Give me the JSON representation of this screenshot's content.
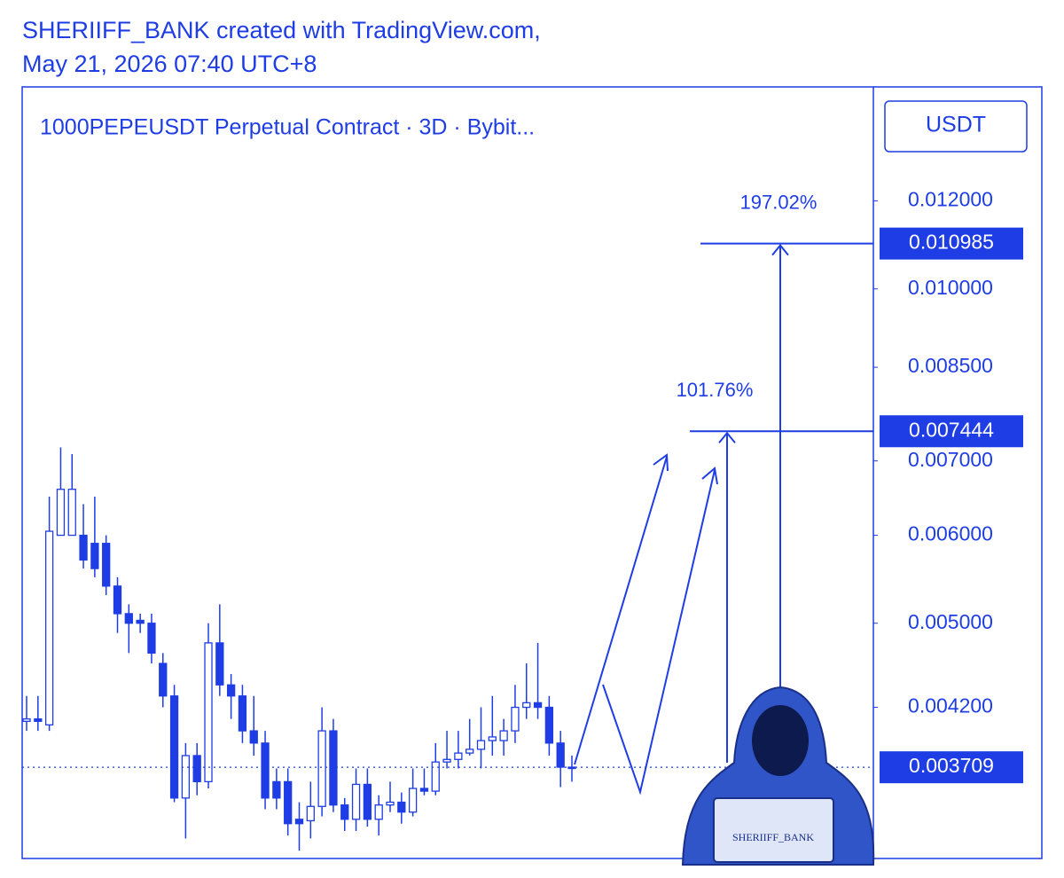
{
  "header": {
    "line1": "SHERIIFF_BANK created with TradingView.com,",
    "line2": "May 21, 2026 07:40 UTC+8"
  },
  "chart_data": {
    "type": "candlestick",
    "title": "1000PEPEUSDT Perpetual Contract · 3D · Bybit...",
    "currency": "USDT",
    "color": "#1e3de4",
    "log_scale": true,
    "ylim": [
      0.00307,
      0.0152
    ],
    "yticks": [
      {
        "value": 0.012,
        "label": "0.012000"
      },
      {
        "value": 0.01,
        "label": "0.010000"
      },
      {
        "value": 0.0085,
        "label": "0.008500"
      },
      {
        "value": 0.007,
        "label": "0.007000"
      },
      {
        "value": 0.006,
        "label": "0.006000"
      },
      {
        "value": 0.005,
        "label": "0.005000"
      },
      {
        "value": 0.0042,
        "label": "0.004200"
      }
    ],
    "open": [
      0.00408,
      0.0041,
      0.00405,
      0.006,
      0.006,
      0.006,
      0.0059,
      0.0059,
      0.0054,
      0.0051,
      0.00503,
      0.005,
      0.0046,
      0.0043,
      0.00348,
      0.0038,
      0.0036,
      0.0048,
      0.0044,
      0.0043,
      0.004,
      0.0039,
      0.0036,
      0.0036,
      0.00333,
      0.00332,
      0.00342,
      0.004,
      0.00343,
      0.00333,
      0.00358,
      0.00333,
      0.00343,
      0.00345,
      0.00338,
      0.00355,
      0.00353,
      0.00375,
      0.00377,
      0.00382,
      0.00385,
      0.00392,
      0.00392,
      0.004,
      0.0042,
      0.00424,
      0.0042,
      0.0039,
      0.00371
    ],
    "high": [
      0.0043,
      0.0043,
      0.0065,
      0.0072,
      0.0071,
      0.0064,
      0.0065,
      0.006,
      0.0055,
      0.0052,
      0.0051,
      0.0051,
      0.0047,
      0.0044,
      0.0039,
      0.0039,
      0.005,
      0.0052,
      0.0045,
      0.0044,
      0.0043,
      0.004,
      0.0037,
      0.0037,
      0.00345,
      0.0036,
      0.0042,
      0.0041,
      0.00348,
      0.0037,
      0.0037,
      0.0035,
      0.0036,
      0.00352,
      0.0037,
      0.0037,
      0.0039,
      0.004,
      0.004,
      0.0041,
      0.0042,
      0.0043,
      0.0041,
      0.0044,
      0.0046,
      0.0048,
      0.0043,
      0.004,
      0.0038
    ],
    "low": [
      0.004,
      0.004,
      0.004,
      0.006,
      0.006,
      0.0056,
      0.0055,
      0.0053,
      0.0049,
      0.0047,
      0.0049,
      0.0046,
      0.0042,
      0.00345,
      0.0032,
      0.0035,
      0.00355,
      0.0043,
      0.0041,
      0.0039,
      0.0038,
      0.0034,
      0.0034,
      0.00322,
      0.00312,
      0.0032,
      0.00335,
      0.00338,
      0.00325,
      0.00325,
      0.00328,
      0.00322,
      0.00338,
      0.0033,
      0.00335,
      0.0035,
      0.0035,
      0.0037,
      0.0037,
      0.0038,
      0.0037,
      0.0038,
      0.0038,
      0.0039,
      0.0041,
      0.0041,
      0.0038,
      0.00356,
      0.0036
    ],
    "close": [
      0.0041,
      0.00408,
      0.00605,
      0.0066,
      0.0066,
      0.0057,
      0.0056,
      0.0054,
      0.0051,
      0.005,
      0.005,
      0.0047,
      0.0043,
      0.00348,
      0.0038,
      0.0036,
      0.0048,
      0.0044,
      0.0043,
      0.004,
      0.0039,
      0.00348,
      0.00348,
      0.0033,
      0.0033,
      0.00342,
      0.004,
      0.00343,
      0.00333,
      0.00358,
      0.00333,
      0.00343,
      0.00345,
      0.00338,
      0.00355,
      0.00353,
      0.00375,
      0.00377,
      0.00382,
      0.00385,
      0.00392,
      0.00395,
      0.004,
      0.0042,
      0.00424,
      0.0042,
      0.0039,
      0.00371,
      0.0037
    ],
    "current_price": 0.003709,
    "price_lines": [
      {
        "value": 0.010985,
        "label": "197.02%"
      },
      {
        "value": 0.007444,
        "label": "101.76%"
      }
    ]
  },
  "watermark": "SHERIIFF_BANK"
}
